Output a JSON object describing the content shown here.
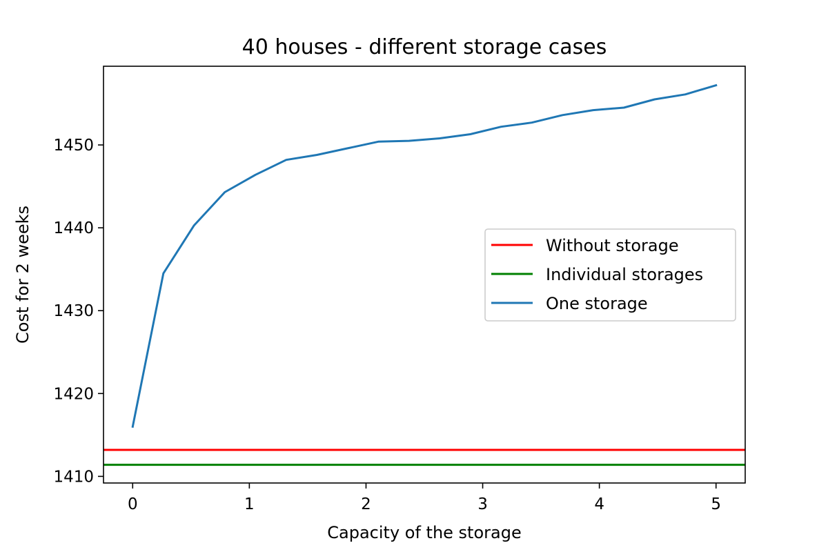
{
  "chart_data": {
    "type": "line",
    "title": "40 houses - different storage cases",
    "xlabel": "Capacity of the storage",
    "ylabel": "Cost for 2 weeks",
    "xlim": [
      -0.25,
      5.25
    ],
    "ylim": [
      1409.2,
      1459.5
    ],
    "xticks": [
      0,
      1,
      2,
      3,
      4,
      5
    ],
    "yticks": [
      1410,
      1420,
      1430,
      1440,
      1450
    ],
    "grid": false,
    "legend_position": "center-right",
    "series": [
      {
        "name": "Without storage",
        "kind": "hline",
        "y": 1413.2,
        "color": "#ff0000"
      },
      {
        "name": "Individual storages",
        "kind": "hline",
        "y": 1411.4,
        "color": "#008000"
      },
      {
        "name": "One storage",
        "kind": "line",
        "color": "#1f77b4",
        "x": [
          0,
          0.2632,
          0.5263,
          0.7895,
          1.0526,
          1.3158,
          1.5789,
          1.8421,
          2.1053,
          2.3684,
          2.6316,
          2.8947,
          3.1579,
          3.4211,
          3.6842,
          3.9474,
          4.2105,
          4.4737,
          4.7368,
          5.0
        ],
        "y": [
          1416.0,
          1434.5,
          1440.3,
          1444.3,
          1446.4,
          1448.2,
          1448.8,
          1449.6,
          1450.4,
          1450.5,
          1450.8,
          1451.3,
          1452.2,
          1452.7,
          1453.6,
          1454.2,
          1454.5,
          1455.5,
          1456.1,
          1457.2
        ]
      }
    ]
  }
}
